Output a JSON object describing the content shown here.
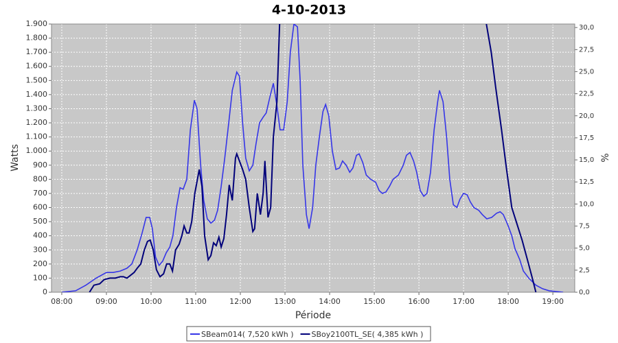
{
  "chart_data": {
    "type": "line",
    "title": "4-10-2013",
    "x_label": "Période",
    "y_label": "Watts",
    "y2_label": "%",
    "xlim": [
      7.77,
      19.49
    ],
    "xticks": [
      {
        "value": 8,
        "label": "08:00"
      },
      {
        "value": 9,
        "label": "09:00"
      },
      {
        "value": 10,
        "label": "10:00"
      },
      {
        "value": 11,
        "label": "11:00"
      },
      {
        "value": 12,
        "label": "12:00"
      },
      {
        "value": 13,
        "label": "13:00"
      },
      {
        "value": 14,
        "label": "14:00"
      },
      {
        "value": 15,
        "label": "15:00"
      },
      {
        "value": 16,
        "label": "16:00"
      },
      {
        "value": 17,
        "label": "17:00"
      },
      {
        "value": 18,
        "label": "18:00"
      },
      {
        "value": 19,
        "label": "19:00"
      }
    ],
    "ylim": [
      0,
      1900
    ],
    "yticks": [
      0,
      100,
      200,
      300,
      400,
      500,
      600,
      700,
      800,
      900,
      {
        "value": 1000,
        "label": "1.000"
      },
      {
        "value": 1100,
        "label": "1.100"
      },
      {
        "value": 1200,
        "label": "1.200"
      },
      {
        "value": 1300,
        "label": "1.300"
      },
      {
        "value": 1400,
        "label": "1.400"
      },
      {
        "value": 1500,
        "label": "1.500"
      },
      {
        "value": 1600,
        "label": "1.600"
      },
      {
        "value": 1700,
        "label": "1.700"
      },
      {
        "value": 1800,
        "label": "1.800"
      },
      {
        "value": 1900,
        "label": "1.900"
      }
    ],
    "y2lim": [
      0,
      30.4
    ],
    "y2ticks": [
      {
        "value": 0,
        "label": "0,0"
      },
      {
        "value": 2.5,
        "label": "2,5"
      },
      {
        "value": 5,
        "label": "5,0"
      },
      {
        "value": 7.5,
        "label": "7,5"
      },
      {
        "value": 10,
        "label": "10,0"
      },
      {
        "value": 12.5,
        "label": "12,5"
      },
      {
        "value": 15,
        "label": "15,0"
      },
      {
        "value": 17.5,
        "label": "17,5"
      },
      {
        "value": 20,
        "label": "20,0"
      },
      {
        "value": 22.5,
        "label": "22,5"
      },
      {
        "value": 25,
        "label": "25,0"
      },
      {
        "value": 27.5,
        "label": "27,5"
      },
      {
        "value": 30,
        "label": "30,0"
      }
    ],
    "grid": true,
    "legend": "bottom",
    "series": [
      {
        "name": "SBeam014( 7,520 kWh )",
        "color": "#3535e8",
        "x": [
          8.0,
          8.31,
          8.54,
          8.77,
          9.0,
          9.15,
          9.31,
          9.46,
          9.57,
          9.69,
          9.8,
          9.89,
          9.97,
          10.03,
          10.1,
          10.18,
          10.26,
          10.34,
          10.42,
          10.49,
          10.57,
          10.65,
          10.72,
          10.8,
          10.88,
          10.97,
          11.03,
          11.11,
          11.18,
          11.26,
          11.34,
          11.42,
          11.49,
          11.57,
          11.65,
          11.74,
          11.82,
          11.92,
          11.98,
          12.05,
          12.12,
          12.2,
          12.28,
          12.35,
          12.43,
          12.51,
          12.58,
          12.66,
          12.74,
          12.82,
          12.89,
          12.97,
          13.05,
          13.12,
          13.2,
          13.28,
          13.34,
          13.4,
          13.48,
          13.54,
          13.62,
          13.69,
          13.77,
          13.85,
          13.91,
          13.98,
          14.06,
          14.14,
          14.22,
          14.29,
          14.37,
          14.45,
          14.52,
          14.6,
          14.66,
          14.74,
          14.82,
          14.92,
          15.03,
          15.11,
          15.18,
          15.26,
          15.34,
          15.42,
          15.54,
          15.65,
          15.72,
          15.8,
          15.88,
          15.95,
          16.03,
          16.11,
          16.18,
          16.26,
          16.34,
          16.42,
          16.46,
          16.54,
          16.62,
          16.69,
          16.77,
          16.85,
          16.92,
          17.0,
          17.08,
          17.15,
          17.23,
          17.34,
          17.42,
          17.52,
          17.63,
          17.74,
          17.82,
          17.89,
          18.0,
          18.08,
          18.15,
          18.26,
          18.34,
          18.46,
          18.62,
          18.77,
          18.92,
          19.23
        ],
        "values": [
          0,
          10,
          50,
          100,
          140,
          140,
          150,
          170,
          200,
          300,
          420,
          530,
          530,
          450,
          250,
          190,
          220,
          280,
          320,
          400,
          600,
          740,
          730,
          800,
          1150,
          1360,
          1300,
          900,
          650,
          520,
          490,
          510,
          580,
          750,
          950,
          1200,
          1430,
          1560,
          1530,
          1200,
          950,
          860,
          900,
          1050,
          1200,
          1240,
          1270,
          1380,
          1480,
          1320,
          1150,
          1150,
          1350,
          1700,
          1900,
          1880,
          1500,
          900,
          550,
          450,
          600,
          900,
          1100,
          1280,
          1330,
          1250,
          1000,
          870,
          880,
          930,
          900,
          850,
          880,
          970,
          980,
          920,
          830,
          800,
          780,
          720,
          700,
          710,
          750,
          800,
          830,
          900,
          970,
          990,
          930,
          850,
          720,
          680,
          700,
          850,
          1150,
          1350,
          1430,
          1350,
          1100,
          800,
          620,
          600,
          660,
          700,
          690,
          640,
          600,
          580,
          550,
          520,
          530,
          560,
          570,
          550,
          470,
          400,
          310,
          230,
          150,
          100,
          50,
          25,
          10,
          0
        ]
      },
      {
        "name": "SBoy2100TL_SE( 4,385 kWh )",
        "color": "#00007a",
        "x": [
          8.62,
          8.72,
          8.85,
          8.95,
          9.08,
          9.2,
          9.31,
          9.38,
          9.46,
          9.54,
          9.62,
          9.69,
          9.77,
          9.85,
          9.92,
          9.98,
          10.05,
          10.12,
          10.2,
          10.28,
          10.35,
          10.42,
          10.48,
          10.55,
          10.63,
          10.69,
          10.74,
          10.8,
          10.85,
          10.91,
          10.98,
          11.08,
          11.14,
          11.2,
          11.28,
          11.34,
          11.4,
          11.46,
          11.52,
          11.57,
          11.63,
          11.69,
          11.75,
          11.82,
          11.89,
          11.92,
          11.98,
          12.05,
          12.12,
          12.2,
          12.28,
          12.32,
          12.38,
          12.45,
          12.51,
          12.55,
          12.62,
          12.68,
          12.74,
          12.82,
          12.88,
          15.2,
          17.51,
          17.62,
          17.72,
          17.85,
          17.95,
          18.08,
          18.18,
          18.31,
          18.43,
          18.54,
          18.62
        ],
        "values": [
          0,
          50,
          60,
          90,
          100,
          100,
          110,
          110,
          100,
          120,
          140,
          170,
          200,
          300,
          360,
          370,
          300,
          160,
          110,
          130,
          200,
          200,
          150,
          300,
          340,
          400,
          470,
          420,
          420,
          500,
          700,
          870,
          750,
          400,
          230,
          260,
          350,
          330,
          390,
          320,
          380,
          550,
          760,
          650,
          950,
          980,
          930,
          870,
          800,
          600,
          430,
          450,
          700,
          550,
          700,
          930,
          530,
          600,
          1100,
          1350,
          1900,
          null,
          1900,
          1700,
          1450,
          1150,
          900,
          600,
          500,
          370,
          230,
          100,
          0
        ]
      }
    ]
  }
}
